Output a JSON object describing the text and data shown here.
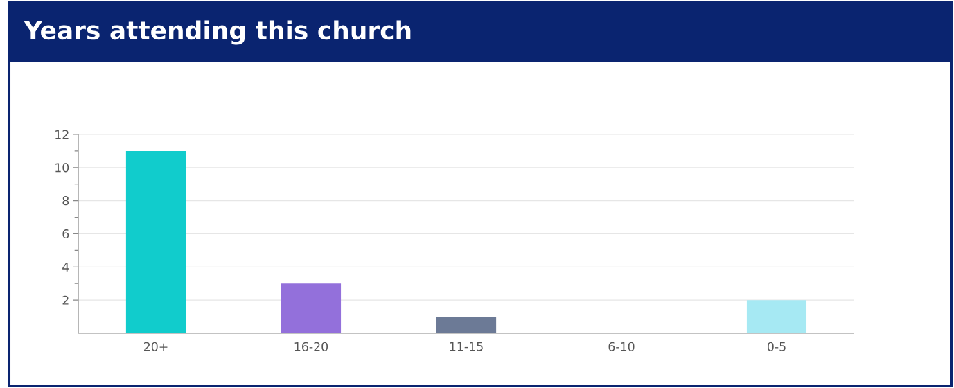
{
  "chart_data": {
    "type": "bar",
    "title": "Years attending this church",
    "categories": [
      "20+",
      "16-20",
      "11-15",
      "6-10",
      "0-5"
    ],
    "values": [
      11,
      3,
      1,
      0,
      2
    ],
    "colors": [
      "#11cccc",
      "#9370db",
      "#6c7a96",
      "#6c7a96",
      "#a6e9f3"
    ],
    "ylim": [
      0,
      12
    ],
    "yticks": [
      2,
      4,
      6,
      8,
      10,
      12
    ],
    "grid": "y"
  }
}
